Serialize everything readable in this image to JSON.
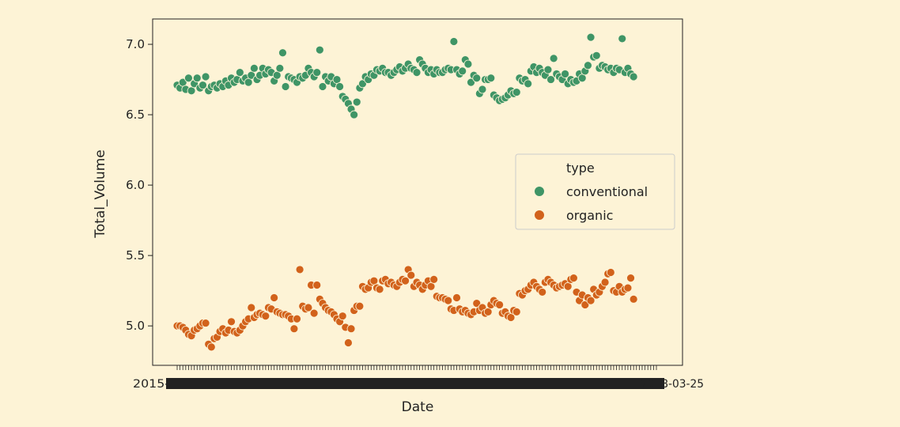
{
  "chart_data": {
    "type": "scatter",
    "xlabel": "Date",
    "ylabel": "Total_Volume",
    "ylim": [
      4.72,
      7.18
    ],
    "y_ticks": [
      "5.0",
      "5.5",
      "6.0",
      "6.5",
      "7.0"
    ],
    "x_tick_count": 169,
    "x_tick_label_left": "2015-01-04",
    "x_tick_label_right": "2018-03-25",
    "grid": false,
    "legend": {
      "title": "type",
      "position": "center-right"
    },
    "series": [
      {
        "name": "conventional",
        "color": "#3f9566",
        "values": [
          6.71,
          6.69,
          6.73,
          6.68,
          6.76,
          6.67,
          6.72,
          6.76,
          6.69,
          6.71,
          6.77,
          6.67,
          6.7,
          6.71,
          6.69,
          6.72,
          6.7,
          6.74,
          6.71,
          6.76,
          6.73,
          6.75,
          6.8,
          6.74,
          6.76,
          6.73,
          6.78,
          6.83,
          6.75,
          6.78,
          6.83,
          6.79,
          6.82,
          6.8,
          6.74,
          6.78,
          6.83,
          6.94,
          6.7,
          6.77,
          6.76,
          6.75,
          6.73,
          6.77,
          6.76,
          6.78,
          6.83,
          6.8,
          6.77,
          6.8,
          6.96,
          6.7,
          6.77,
          6.74,
          6.77,
          6.72,
          6.75,
          6.7,
          6.63,
          6.61,
          6.58,
          6.54,
          6.5,
          6.59,
          6.69,
          6.72,
          6.77,
          6.75,
          6.79,
          6.78,
          6.82,
          6.81,
          6.83,
          6.8,
          6.8,
          6.78,
          6.8,
          6.82,
          6.84,
          6.81,
          6.83,
          6.86,
          6.83,
          6.82,
          6.8,
          6.89,
          6.86,
          6.83,
          6.8,
          6.82,
          6.79,
          6.82,
          6.8,
          6.8,
          6.82,
          6.83,
          6.82,
          7.02,
          6.82,
          6.79,
          6.81,
          6.89,
          6.86,
          6.73,
          6.78,
          6.76,
          6.65,
          6.68,
          6.75,
          6.75,
          6.76,
          6.64,
          6.62,
          6.6,
          6.61,
          6.62,
          6.64,
          6.67,
          6.65,
          6.66,
          6.76,
          6.74,
          6.75,
          6.72,
          6.81,
          6.84,
          6.8,
          6.83,
          6.8,
          6.78,
          6.82,
          6.75,
          6.9,
          6.79,
          6.77,
          6.75,
          6.79,
          6.72,
          6.75,
          6.73,
          6.74,
          6.79,
          6.76,
          6.81,
          6.85,
          7.05,
          6.91,
          6.92,
          6.83,
          6.85,
          6.84,
          6.82,
          6.83,
          6.8,
          6.83,
          6.82,
          7.04,
          6.8,
          6.83,
          6.79,
          6.77
        ]
      },
      {
        "name": "organic",
        "color": "#d2621b",
        "values": [
          5.0,
          5.0,
          4.99,
          4.97,
          4.94,
          4.93,
          4.97,
          4.98,
          5.0,
          5.02,
          5.02,
          4.87,
          4.85,
          4.91,
          4.92,
          4.96,
          4.98,
          4.95,
          4.97,
          5.03,
          4.96,
          4.95,
          4.97,
          5.0,
          5.03,
          5.05,
          5.13,
          5.06,
          5.08,
          5.09,
          5.08,
          5.07,
          5.13,
          5.12,
          5.2,
          5.1,
          5.09,
          5.08,
          5.08,
          5.07,
          5.05,
          4.98,
          5.05,
          5.4,
          5.14,
          5.12,
          5.13,
          5.29,
          5.09,
          5.29,
          5.19,
          5.16,
          5.13,
          5.11,
          5.1,
          5.08,
          5.05,
          5.03,
          5.07,
          4.99,
          4.88,
          4.98,
          5.11,
          5.14,
          5.14,
          5.28,
          5.26,
          5.27,
          5.31,
          5.32,
          5.27,
          5.26,
          5.32,
          5.33,
          5.3,
          5.31,
          5.29,
          5.28,
          5.31,
          5.33,
          5.32,
          5.4,
          5.36,
          5.28,
          5.31,
          5.29,
          5.26,
          5.29,
          5.32,
          5.28,
          5.33,
          5.21,
          5.2,
          5.2,
          5.19,
          5.18,
          5.12,
          5.11,
          5.2,
          5.12,
          5.1,
          5.11,
          5.09,
          5.08,
          5.1,
          5.16,
          5.11,
          5.13,
          5.09,
          5.1,
          5.15,
          5.18,
          5.16,
          5.15,
          5.09,
          5.1,
          5.07,
          5.06,
          5.11,
          5.1,
          5.23,
          5.22,
          5.25,
          5.26,
          5.29,
          5.31,
          5.28,
          5.26,
          5.24,
          5.31,
          5.33,
          5.31,
          5.29,
          5.27,
          5.28,
          5.29,
          5.3,
          5.28,
          5.33,
          5.34,
          5.24,
          5.18,
          5.22,
          5.15,
          5.2,
          5.18,
          5.26,
          5.22,
          5.24,
          5.28,
          5.31,
          5.37,
          5.38,
          5.25,
          5.24,
          5.28,
          5.24,
          5.26,
          5.27,
          5.34,
          5.19
        ]
      }
    ]
  }
}
